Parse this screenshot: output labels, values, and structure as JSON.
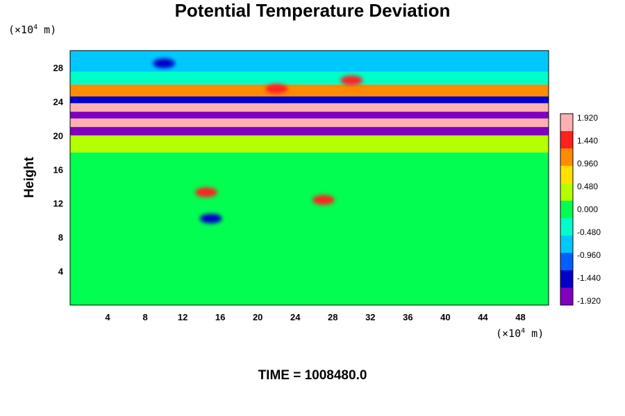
{
  "chart_data": {
    "type": "heatmap",
    "title": "Potential Temperature Deviation",
    "ylabel": "Height",
    "x_unit": {
      "prefix": "(×10",
      "exp": "4",
      "suffix": " m)"
    },
    "y_unit": {
      "prefix": "(×10",
      "exp": "4",
      "suffix": " m)"
    },
    "xlim": [
      0,
      51
    ],
    "ylim": [
      0,
      30
    ],
    "x_ticks": [
      4,
      8,
      12,
      16,
      20,
      24,
      28,
      32,
      36,
      40,
      44,
      48
    ],
    "y_ticks": [
      4,
      8,
      12,
      16,
      20,
      24,
      28
    ],
    "colorbar": {
      "labels": [
        "1.920",
        "1.440",
        "0.960",
        "0.480",
        "0.000",
        "-0.480",
        "-0.960",
        "-1.440",
        "-1.920"
      ],
      "values": [
        1.92,
        1.44,
        0.96,
        0.48,
        0.0,
        -0.48,
        -0.96,
        -1.44,
        -1.92
      ],
      "colors": [
        "#ffb0b0",
        "#ff2020",
        "#ff8c00",
        "#ffe000",
        "#b4ff00",
        "#00ff50",
        "#00ffc8",
        "#00c8ff",
        "#0060ff",
        "#0000c8",
        "#8000c0"
      ]
    },
    "field_regions": [
      {
        "y_range": [
          0,
          18
        ],
        "value": 0.05
      },
      {
        "y_range": [
          18,
          20
        ],
        "value": 0.35
      },
      {
        "y_range": [
          20,
          21
        ],
        "value": -1.9
      },
      {
        "y_range": [
          21,
          22
        ],
        "value": 1.95
      },
      {
        "y_range": [
          22,
          22.8
        ],
        "value": -1.9
      },
      {
        "y_range": [
          22.8,
          23.8
        ],
        "value": 1.95
      },
      {
        "y_range": [
          23.8,
          24.6
        ],
        "value": -1.5
      },
      {
        "y_range": [
          24.6,
          26
        ],
        "value": 1.3
      },
      {
        "y_range": [
          26,
          27.5
        ],
        "value": -0.3
      },
      {
        "y_range": [
          27.5,
          30
        ],
        "value": -0.9
      }
    ],
    "features": [
      {
        "x": 14.5,
        "y": 13.3,
        "value": 1.6
      },
      {
        "x": 15,
        "y": 10.2,
        "value": -1.5
      },
      {
        "x": 27,
        "y": 12.4,
        "value": 1.5
      },
      {
        "x": 22,
        "y": 25.5,
        "value": 1.7
      },
      {
        "x": 30,
        "y": 26.5,
        "value": 1.6
      },
      {
        "x": 10,
        "y": 28.5,
        "value": -1.4
      }
    ]
  },
  "time_label": "TIME = 1008480.0"
}
